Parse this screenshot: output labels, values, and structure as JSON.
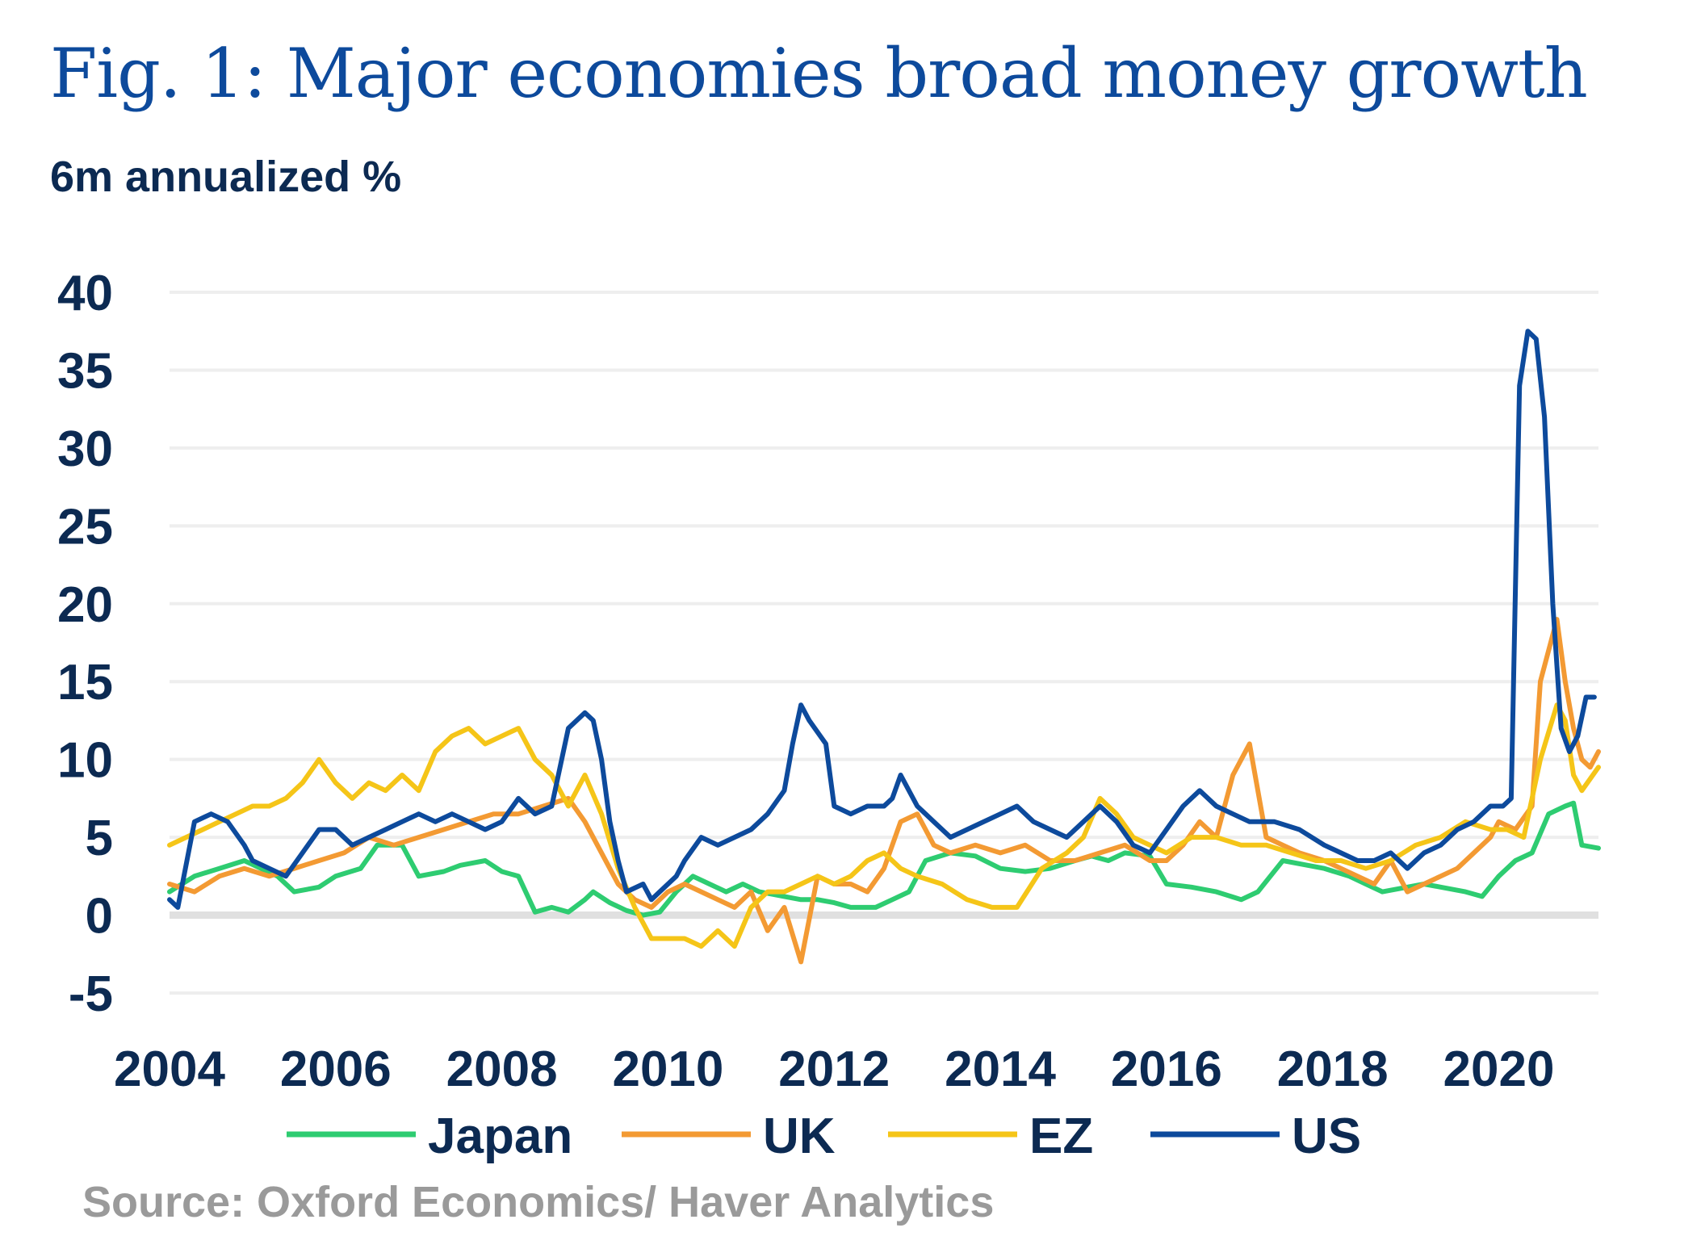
{
  "title": "Fig. 1: Major economies broad money growth",
  "subtitle": "6m annualized %",
  "source": "Source: Oxford Economics/ Haver Analytics",
  "chart_data": {
    "type": "line",
    "title": "Fig. 1: Major economies broad money growth",
    "ylabel": "6m annualized %",
    "xlabel": "",
    "xlim": [
      2004,
      2021.2
    ],
    "ylim": [
      -5,
      40
    ],
    "y_ticks": [
      "40",
      "35",
      "30",
      "25",
      "20",
      "15",
      "10",
      "5",
      "0",
      "-5"
    ],
    "y_tick_values": [
      40,
      35,
      30,
      25,
      20,
      15,
      10,
      5,
      0,
      -5
    ],
    "x_ticks": [
      "2004",
      "2006",
      "2008",
      "2010",
      "2012",
      "2014",
      "2016",
      "2018",
      "2020"
    ],
    "x_tick_values": [
      2004,
      2006,
      2008,
      2010,
      2012,
      2014,
      2016,
      2018,
      2020
    ],
    "grid": true,
    "legend_position": "bottom",
    "series": [
      {
        "name": "Japan",
        "color": "#2ecc71",
        "x": [
          2004.0,
          2004.3,
          2004.6,
          2004.9,
          2005.1,
          2005.3,
          2005.5,
          2005.8,
          2006.0,
          2006.3,
          2006.5,
          2006.8,
          2007.0,
          2007.3,
          2007.5,
          2007.8,
          2008.0,
          2008.2,
          2008.4,
          2008.6,
          2008.8,
          2009.0,
          2009.1,
          2009.3,
          2009.5,
          2009.7,
          2009.9,
          2010.1,
          2010.3,
          2010.5,
          2010.7,
          2010.9,
          2011.1,
          2011.4,
          2011.6,
          2011.8,
          2012.0,
          2012.2,
          2012.5,
          2012.7,
          2012.9,
          2013.1,
          2013.4,
          2013.7,
          2014.0,
          2014.3,
          2014.6,
          2014.9,
          2015.1,
          2015.3,
          2015.5,
          2015.8,
          2016.0,
          2016.3,
          2016.6,
          2016.9,
          2017.1,
          2017.4,
          2017.7,
          2017.9,
          2018.2,
          2018.4,
          2018.6,
          2018.9,
          2019.1,
          2019.3,
          2019.6,
          2019.8,
          2020.0,
          2020.2,
          2020.4,
          2020.6,
          2020.8,
          2020.9,
          2021.0,
          2021.2
        ],
        "values": [
          1.5,
          2.5,
          3.0,
          3.5,
          3.0,
          2.5,
          1.5,
          1.8,
          2.5,
          3.0,
          4.5,
          4.5,
          2.5,
          2.8,
          3.2,
          3.5,
          2.8,
          2.5,
          0.2,
          0.5,
          0.2,
          1.0,
          1.5,
          0.8,
          0.3,
          0.0,
          0.2,
          1.5,
          2.5,
          2.0,
          1.5,
          2.0,
          1.5,
          1.2,
          1.0,
          1.0,
          0.8,
          0.5,
          0.5,
          1.0,
          1.5,
          3.5,
          4.0,
          3.8,
          3.0,
          2.8,
          3.0,
          3.5,
          3.8,
          3.5,
          4.0,
          3.8,
          2.0,
          1.8,
          1.5,
          1.0,
          1.5,
          3.5,
          3.2,
          3.0,
          2.5,
          2.0,
          1.5,
          1.8,
          2.0,
          1.8,
          1.5,
          1.2,
          2.5,
          3.5,
          4.0,
          6.5,
          7.0,
          7.2,
          4.5,
          4.3
        ]
      },
      {
        "name": "UK",
        "color": "#f39a33",
        "x": [
          2004.0,
          2004.3,
          2004.6,
          2004.9,
          2005.2,
          2005.5,
          2005.8,
          2006.1,
          2006.4,
          2006.7,
          2007.0,
          2007.3,
          2007.6,
          2007.9,
          2008.2,
          2008.5,
          2008.8,
          2009.0,
          2009.2,
          2009.4,
          2009.6,
          2009.8,
          2010.0,
          2010.2,
          2010.4,
          2010.6,
          2010.8,
          2011.0,
          2011.2,
          2011.4,
          2011.6,
          2011.8,
          2012.0,
          2012.2,
          2012.4,
          2012.6,
          2012.8,
          2013.0,
          2013.2,
          2013.4,
          2013.7,
          2014.0,
          2014.3,
          2014.6,
          2014.9,
          2015.2,
          2015.5,
          2015.8,
          2016.0,
          2016.2,
          2016.4,
          2016.6,
          2016.8,
          2017.0,
          2017.2,
          2017.4,
          2017.6,
          2017.9,
          2018.1,
          2018.3,
          2018.5,
          2018.7,
          2018.9,
          2019.1,
          2019.3,
          2019.5,
          2019.7,
          2019.9,
          2020.0,
          2020.2,
          2020.4,
          2020.5,
          2020.7,
          2020.8,
          2020.9,
          2021.0,
          2021.1,
          2021.2
        ],
        "values": [
          2.0,
          1.5,
          2.5,
          3.0,
          2.5,
          3.0,
          3.5,
          4.0,
          5.0,
          4.5,
          5.0,
          5.5,
          6.0,
          6.5,
          6.5,
          7.0,
          7.5,
          6.0,
          4.0,
          2.0,
          1.0,
          0.5,
          1.5,
          2.0,
          1.5,
          1.0,
          0.5,
          1.5,
          -1.0,
          0.5,
          -3.0,
          2.5,
          2.0,
          2.0,
          1.5,
          3.0,
          6.0,
          6.5,
          4.5,
          4.0,
          4.5,
          4.0,
          4.5,
          3.5,
          3.5,
          4.0,
          4.5,
          3.5,
          3.5,
          4.5,
          6.0,
          5.0,
          9.0,
          11.0,
          5.0,
          4.5,
          4.0,
          3.5,
          3.0,
          2.5,
          2.0,
          3.5,
          1.5,
          2.0,
          2.5,
          3.0,
          4.0,
          5.0,
          6.0,
          5.5,
          7.0,
          15.0,
          19.0,
          15.0,
          12.0,
          10.0,
          9.5,
          10.5
        ]
      },
      {
        "name": "EZ",
        "color": "#f5c518",
        "x": [
          2004.0,
          2004.2,
          2004.4,
          2004.6,
          2004.8,
          2005.0,
          2005.2,
          2005.4,
          2005.6,
          2005.8,
          2006.0,
          2006.2,
          2006.4,
          2006.6,
          2006.8,
          2007.0,
          2007.2,
          2007.4,
          2007.6,
          2007.8,
          2008.0,
          2008.2,
          2008.4,
          2008.6,
          2008.8,
          2009.0,
          2009.2,
          2009.4,
          2009.6,
          2009.8,
          2010.0,
          2010.2,
          2010.4,
          2010.6,
          2010.8,
          2011.0,
          2011.2,
          2011.4,
          2011.6,
          2011.8,
          2012.0,
          2012.2,
          2012.4,
          2012.6,
          2012.8,
          2013.0,
          2013.3,
          2013.6,
          2013.9,
          2014.2,
          2014.5,
          2014.8,
          2015.0,
          2015.2,
          2015.4,
          2015.6,
          2015.8,
          2016.0,
          2016.3,
          2016.6,
          2016.9,
          2017.2,
          2017.5,
          2017.8,
          2018.1,
          2018.4,
          2018.7,
          2019.0,
          2019.3,
          2019.6,
          2019.9,
          2020.1,
          2020.3,
          2020.5,
          2020.7,
          2020.8,
          2020.9,
          2021.0,
          2021.2
        ],
        "values": [
          4.5,
          5.0,
          5.5,
          6.0,
          6.5,
          7.0,
          7.0,
          7.5,
          8.5,
          10.0,
          8.5,
          7.5,
          8.5,
          8.0,
          9.0,
          8.0,
          10.5,
          11.5,
          12.0,
          11.0,
          11.5,
          12.0,
          10.0,
          9.0,
          7.0,
          9.0,
          6.5,
          3.0,
          0.5,
          -1.5,
          -1.5,
          -1.5,
          -2.0,
          -1.0,
          -2.0,
          0.5,
          1.5,
          1.5,
          2.0,
          2.5,
          2.0,
          2.5,
          3.5,
          4.0,
          3.0,
          2.5,
          2.0,
          1.0,
          0.5,
          0.5,
          3.0,
          4.0,
          5.0,
          7.5,
          6.5,
          5.0,
          4.5,
          4.0,
          5.0,
          5.0,
          4.5,
          4.5,
          4.0,
          3.5,
          3.5,
          3.0,
          3.5,
          4.5,
          5.0,
          6.0,
          5.5,
          5.5,
          5.0,
          10.0,
          13.5,
          12.5,
          9.0,
          8.0,
          9.5
        ]
      },
      {
        "name": "US",
        "color": "#0d4a9c",
        "x": [
          2004.0,
          2004.1,
          2004.3,
          2004.5,
          2004.7,
          2004.9,
          2005.0,
          2005.2,
          2005.4,
          2005.6,
          2005.8,
          2006.0,
          2006.2,
          2006.4,
          2006.6,
          2006.8,
          2007.0,
          2007.2,
          2007.4,
          2007.6,
          2007.8,
          2008.0,
          2008.2,
          2008.4,
          2008.6,
          2008.8,
          2009.0,
          2009.1,
          2009.2,
          2009.3,
          2009.4,
          2009.5,
          2009.7,
          2009.8,
          2009.9,
          2010.1,
          2010.2,
          2010.4,
          2010.6,
          2010.8,
          2011.0,
          2011.2,
          2011.4,
          2011.5,
          2011.6,
          2011.7,
          2011.9,
          2012.0,
          2012.2,
          2012.4,
          2012.6,
          2012.7,
          2012.8,
          2013.0,
          2013.2,
          2013.4,
          2013.6,
          2013.8,
          2014.0,
          2014.2,
          2014.4,
          2014.6,
          2014.8,
          2015.0,
          2015.2,
          2015.4,
          2015.6,
          2015.8,
          2016.0,
          2016.2,
          2016.4,
          2016.6,
          2016.8,
          2017.0,
          2017.3,
          2017.6,
          2017.9,
          2018.1,
          2018.3,
          2018.5,
          2018.7,
          2018.9,
          2019.1,
          2019.3,
          2019.5,
          2019.7,
          2019.9,
          2020.05,
          2020.15,
          2020.25,
          2020.35,
          2020.45,
          2020.55,
          2020.65,
          2020.75,
          2020.85,
          2020.95,
          2021.05,
          2021.15
        ],
        "values": [
          1.0,
          0.5,
          6.0,
          6.5,
          6.0,
          4.5,
          3.5,
          3.0,
          2.5,
          4.0,
          5.5,
          5.5,
          4.5,
          5.0,
          5.5,
          6.0,
          6.5,
          6.0,
          6.5,
          6.0,
          5.5,
          6.0,
          7.5,
          6.5,
          7.0,
          12.0,
          13.0,
          12.5,
          10.0,
          6.0,
          3.5,
          1.5,
          2.0,
          1.0,
          1.5,
          2.5,
          3.5,
          5.0,
          4.5,
          5.0,
          5.5,
          6.5,
          8.0,
          11.0,
          13.5,
          12.5,
          11.0,
          7.0,
          6.5,
          7.0,
          7.0,
          7.5,
          9.0,
          7.0,
          6.0,
          5.0,
          5.5,
          6.0,
          6.5,
          7.0,
          6.0,
          5.5,
          5.0,
          6.0,
          7.0,
          6.0,
          4.5,
          4.0,
          5.5,
          7.0,
          8.0,
          7.0,
          6.5,
          6.0,
          6.0,
          5.5,
          4.5,
          4.0,
          3.5,
          3.5,
          4.0,
          3.0,
          4.0,
          4.5,
          5.5,
          6.0,
          7.0,
          7.0,
          7.5,
          34.0,
          37.5,
          37.0,
          32.0,
          20.0,
          12.0,
          10.5,
          11.5,
          14.0,
          14.0
        ]
      }
    ]
  }
}
